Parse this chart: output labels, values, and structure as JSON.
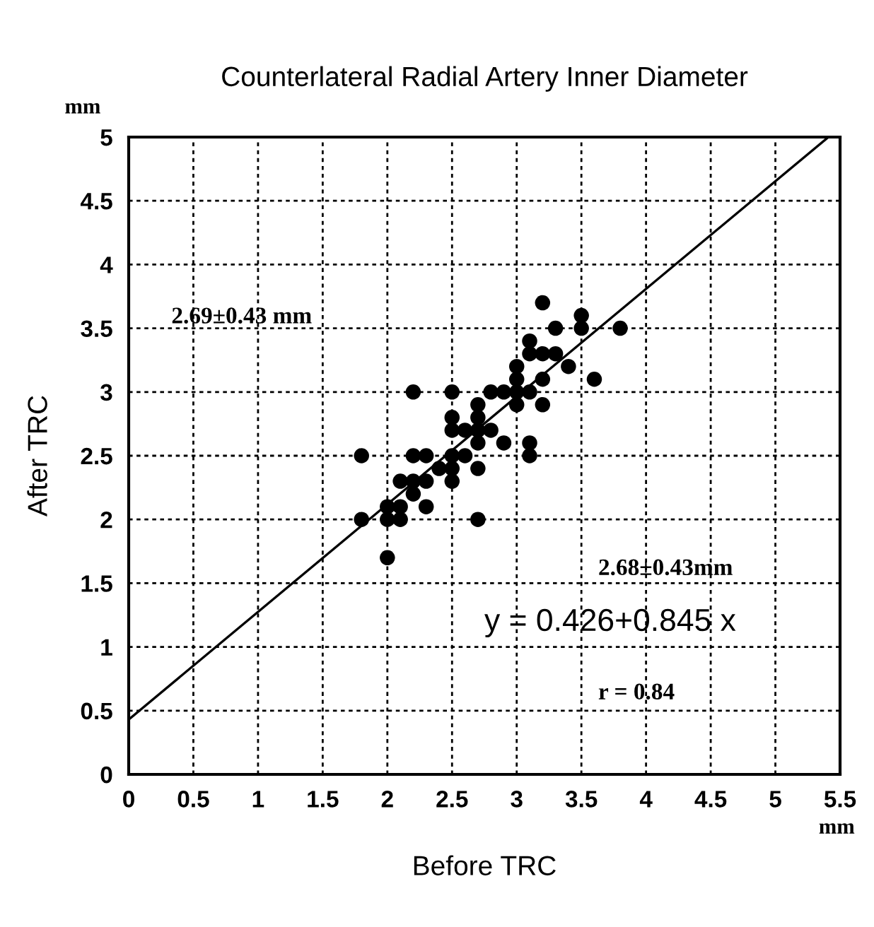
{
  "chart_data": {
    "type": "scatter",
    "title": "Counterlateral Radial Artery Inner Diameter",
    "xlabel": "Before TRC",
    "ylabel": "After TRC",
    "xlim": [
      0,
      5.5
    ],
    "ylim": [
      0,
      5
    ],
    "xticks": [
      0,
      0.5,
      1,
      1.5,
      2,
      2.5,
      3,
      3.5,
      4,
      4.5,
      5,
      5.5
    ],
    "yticks": [
      0,
      0.5,
      1,
      1.5,
      2,
      2.5,
      3,
      3.5,
      4,
      4.5,
      5
    ],
    "grid": true,
    "series": [
      {
        "color": "#000000",
        "marker": "circle",
        "x": [
          3.2,
          3.3,
          3.5,
          3.5,
          3.8,
          3.1,
          3.1,
          3.2,
          3.3,
          3.4,
          3.6,
          3.0,
          3.0,
          3.2,
          2.2,
          2.5,
          2.8,
          2.9,
          3.0,
          3.1,
          2.7,
          3.0,
          3.2,
          2.7,
          2.5,
          2.5,
          2.6,
          2.7,
          2.8,
          2.7,
          2.9,
          3.1,
          3.1,
          1.8,
          2.2,
          2.3,
          2.5,
          2.6,
          2.4,
          2.5,
          2.7,
          2.1,
          2.2,
          2.3,
          2.5,
          2.2,
          2.3,
          2.0,
          2.1,
          1.8,
          2.0,
          2.1,
          2.7,
          2.0
        ],
        "values": [
          3.7,
          3.5,
          3.6,
          3.5,
          3.5,
          3.4,
          3.3,
          3.3,
          3.3,
          3.2,
          3.1,
          3.2,
          3.1,
          3.1,
          3.0,
          3.0,
          3.0,
          3.0,
          3.0,
          3.0,
          2.9,
          2.9,
          2.9,
          2.8,
          2.8,
          2.7,
          2.7,
          2.7,
          2.7,
          2.6,
          2.6,
          2.6,
          2.5,
          2.5,
          2.5,
          2.5,
          2.5,
          2.5,
          2.4,
          2.4,
          2.4,
          2.3,
          2.3,
          2.3,
          2.3,
          2.2,
          2.1,
          2.1,
          2.1,
          2.0,
          2.0,
          2.0,
          2.0,
          1.7
        ]
      },
      {
        "type": "line",
        "color": "#000000",
        "line_style": "solid",
        "x": [
          0,
          5.41
        ],
        "values": [
          0.43,
          5.0
        ]
      }
    ],
    "annotations": [
      "mm",
      "mm",
      "2.69±0.43 mm",
      "2.68±0.43mm",
      "y = 0.426+0.845 x",
      "r = 0.84"
    ]
  }
}
